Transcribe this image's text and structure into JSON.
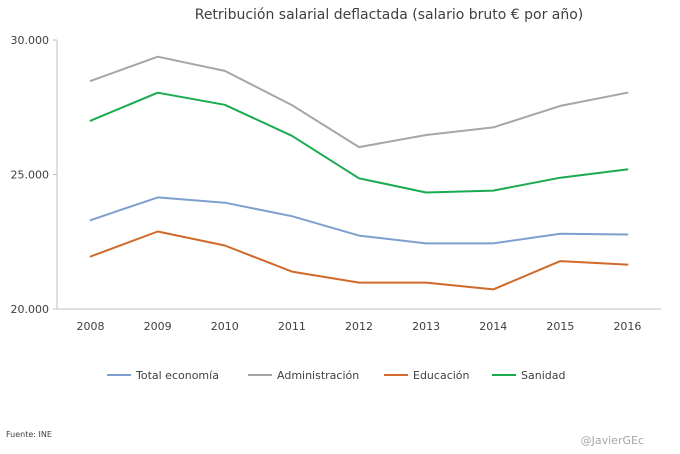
{
  "source": "Fuente: INE",
  "credit": "@JavierGEc",
  "chart_data": {
    "type": "line",
    "title": "Retribución salarial deflactada (salario bruto € por año)",
    "categories": [
      "2008",
      "2009",
      "2010",
      "2011",
      "2012",
      "2013",
      "2014",
      "2015",
      "2016"
    ],
    "ylim": [
      20000,
      30000
    ],
    "yticks": [
      20000,
      25000,
      30000
    ],
    "ytick_labels": [
      "20.000",
      "25.000",
      "30.000"
    ],
    "grid": false,
    "legend_position": "bottom",
    "series": [
      {
        "name": "Total economía",
        "color": "#7f9fcf",
        "values": [
          23300,
          24150,
          23950,
          23450,
          22730,
          22440,
          22440,
          22800,
          22770
        ]
      },
      {
        "name": "Administración",
        "color": "#a6a6a6",
        "values": [
          28480,
          29380,
          28850,
          27580,
          26020,
          26470,
          26750,
          27550,
          28040
        ]
      },
      {
        "name": "Educación",
        "color": "#d0692a",
        "values": [
          21950,
          22880,
          22360,
          21390,
          20980,
          20980,
          20730,
          21780,
          21650
        ]
      },
      {
        "name": "Sanidad",
        "color": "#1aaa50",
        "values": [
          27000,
          28040,
          27590,
          26440,
          24860,
          24330,
          24400,
          24880,
          25190
        ]
      }
    ]
  }
}
